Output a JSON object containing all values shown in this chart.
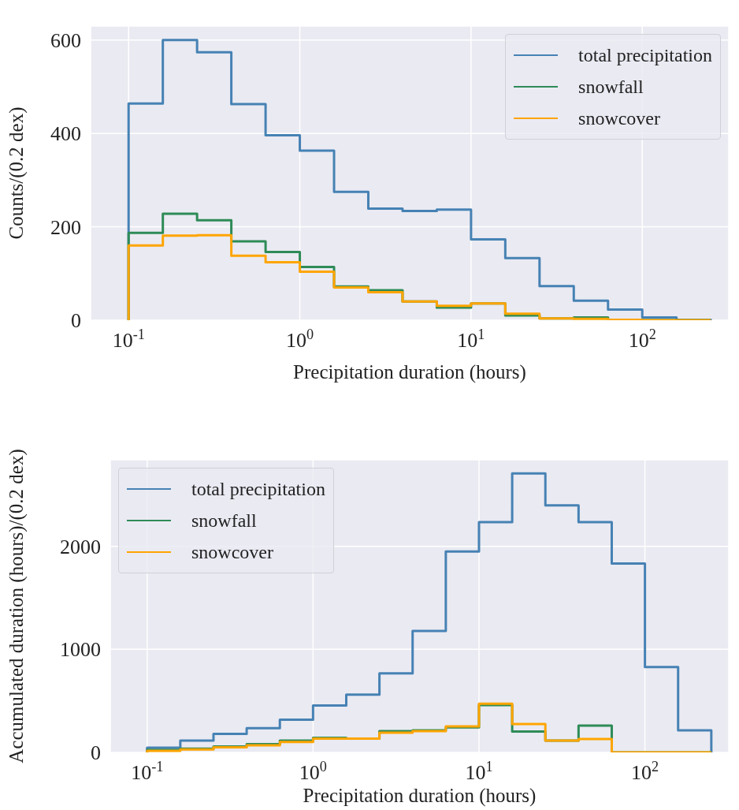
{
  "chart_data": [
    {
      "type": "histogram",
      "xlabel": "Precipitation duration (hours)",
      "ylabel": "Counts/(0.2 dex)",
      "log": "x",
      "grid": true,
      "legend": "top right",
      "bins": [
        0.1,
        0.1585,
        0.2512,
        0.3981,
        0.631,
        1,
        1.585,
        2.512,
        3.981,
        6.31,
        10,
        15.85,
        25.12,
        39.81,
        63.1,
        100,
        158.5,
        251.2
      ],
      "xlim": [
        0.06,
        320
      ],
      "xticks": [
        {
          "value": 0.1,
          "label": "10$^{-1}$"
        },
        {
          "value": 1,
          "label": "10$^{0}$"
        },
        {
          "value": 10,
          "label": "10$^{1}$"
        },
        {
          "value": 100,
          "label": "10$^{2}$"
        }
      ],
      "ylim": [
        0,
        630
      ],
      "yticks": [
        0,
        200,
        400,
        600
      ],
      "series": [
        {
          "name": "total precipitation",
          "color": "#4682b4",
          "values": [
            464,
            600,
            574,
            463,
            396,
            363,
            275,
            239,
            234,
            237,
            173,
            133,
            73,
            42,
            23,
            6,
            1
          ]
        },
        {
          "name": "snowfall",
          "color": "#2e8b57",
          "values": [
            187,
            228,
            214,
            169,
            146,
            114,
            72,
            64,
            40,
            27,
            36,
            10,
            4,
            6,
            1,
            0,
            0
          ]
        },
        {
          "name": "snowcover",
          "color": "#ffa500",
          "values": [
            160,
            181,
            182,
            138,
            124,
            104,
            70,
            60,
            40,
            31,
            36,
            14,
            4,
            3,
            1,
            0,
            0
          ]
        }
      ]
    },
    {
      "type": "histogram",
      "xlabel": "Precipitation duration (hours)",
      "ylabel": "Accumulated duration (hours)/(0.2 dex)",
      "log": "x",
      "grid": true,
      "legend": "top left",
      "bins": [
        0.1,
        0.1585,
        0.2512,
        0.3981,
        0.631,
        1,
        1.585,
        2.512,
        3.981,
        6.31,
        10,
        15.85,
        25.12,
        39.81,
        63.1,
        100,
        158.5,
        251.2
      ],
      "xlim": [
        0.06,
        320
      ],
      "xticks": [
        {
          "value": 0.1,
          "label": "10$^{-1}$"
        },
        {
          "value": 1,
          "label": "10$^{0}$"
        },
        {
          "value": 10,
          "label": "10$^{1}$"
        },
        {
          "value": 100,
          "label": "10$^{2}$"
        }
      ],
      "ylim": [
        0,
        2840
      ],
      "yticks": [
        0,
        1000,
        2000
      ],
      "series": [
        {
          "name": "total precipitation",
          "color": "#4682b4",
          "values": [
            45,
            114,
            179,
            236,
            317,
            455,
            561,
            768,
            1179,
            1951,
            2236,
            2707,
            2398,
            2236,
            1833,
            829,
            215
          ]
        },
        {
          "name": "snowfall",
          "color": "#2e8b57",
          "values": [
            24,
            37,
            57,
            81,
            114,
            142,
            134,
            207,
            215,
            244,
            459,
            203,
            114,
            260,
            0,
            0,
            0
          ]
        },
        {
          "name": "snowcover",
          "color": "#ffa500",
          "values": [
            16,
            28,
            49,
            69,
            102,
            134,
            134,
            191,
            207,
            252,
            472,
            276,
            114,
            130,
            0,
            0,
            0
          ]
        }
      ]
    }
  ]
}
